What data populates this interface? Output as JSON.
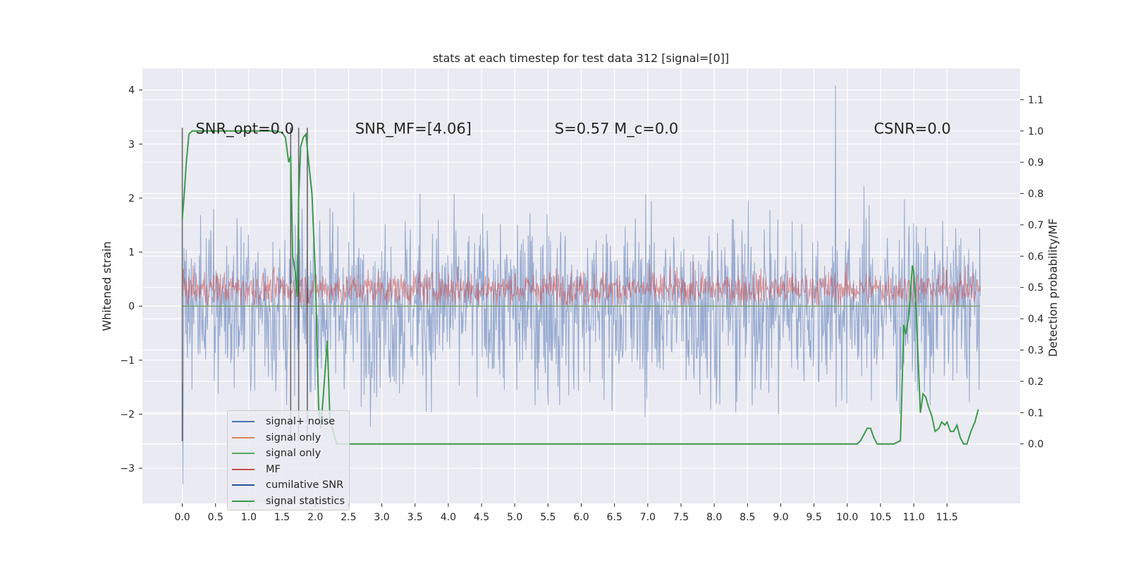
{
  "chart_data": {
    "type": "line",
    "title": "stats at each timestep for test data 312 [signal=[0]]",
    "ylabel": "Whitened strain",
    "y2label": "Detection probability/MF",
    "xlim": [
      -0.6,
      12.6
    ],
    "ylim": [
      -3.65,
      4.4
    ],
    "y2lim": [
      -0.19,
      1.2
    ],
    "x_ticks": [
      "0.0",
      "0.5",
      "1.0",
      "1.5",
      "2.0",
      "2.5",
      "3.0",
      "3.5",
      "4.0",
      "4.5",
      "5.0",
      "5.5",
      "6.0",
      "6.5",
      "7.0",
      "7.5",
      "8.0",
      "8.5",
      "9.0",
      "9.5",
      "10.0",
      "10.5",
      "11.0",
      "11.5"
    ],
    "y_ticks": [
      "−3",
      "−2",
      "−1",
      "0",
      "1",
      "2",
      "3",
      "4"
    ],
    "y2_ticks": [
      "0.0",
      "0.1",
      "0.2",
      "0.3",
      "0.4",
      "0.5",
      "0.6",
      "0.7",
      "0.8",
      "0.9",
      "1.0",
      "1.1"
    ],
    "grid": true,
    "legend_position": "lower-left",
    "annotations": [
      {
        "text": "SNR_opt=0.0",
        "x": 0.2,
        "y": 3.3
      },
      {
        "text": "SNR_MF=[4.06]",
        "x": 2.6,
        "y": 3.3
      },
      {
        "text": "S=0.57   M_c=0.0",
        "x": 5.6,
        "y": 3.3
      },
      {
        "text": "CSNR=0.0",
        "x": 10.4,
        "y": 3.3
      }
    ],
    "vlines": [
      0.0,
      1.63,
      1.75,
      1.88
    ],
    "vline_range": [
      -2.5,
      3.3
    ],
    "series": [
      {
        "name": "signal+ noise",
        "color": "#4c72b0",
        "axis": "left",
        "style": "noise",
        "x_range": [
          0,
          12
        ],
        "approx_envelope": [
          -2.6,
          2.5
        ],
        "peak": {
          "x": 9.82,
          "y": 4.08
        },
        "trough": {
          "x": 0.02,
          "y": -3.3
        }
      },
      {
        "name": "signal only",
        "color": "#dd8452",
        "axis": "left",
        "x": [
          0,
          12
        ],
        "values": [
          0,
          0
        ]
      },
      {
        "name": "signal only",
        "color": "#55a868",
        "axis": "left",
        "x": [
          0,
          12
        ],
        "values": [
          0,
          0
        ]
      },
      {
        "name": "MF",
        "color": "#c44e52",
        "axis": "left",
        "style": "noise",
        "x_range": [
          0,
          12
        ],
        "approx_envelope": [
          0.0,
          0.7
        ]
      },
      {
        "name": "cumilative SNR",
        "color": "#2a4f99",
        "axis": "left",
        "x": [],
        "values": []
      },
      {
        "name": "signal statistics",
        "color": "#3a9a4a",
        "axis": "right",
        "x": [
          0.0,
          0.03,
          0.06,
          0.1,
          0.15,
          0.25,
          0.4,
          0.6,
          0.8,
          1.0,
          1.2,
          1.4,
          1.5,
          1.55,
          1.6,
          1.63,
          1.66,
          1.7,
          1.73,
          1.75,
          1.78,
          1.82,
          1.86,
          1.9,
          1.95,
          2.0,
          2.05,
          2.08,
          2.12,
          2.18,
          2.22,
          2.27,
          2.32,
          2.4,
          2.5,
          2.7,
          3.0,
          4.0,
          5.0,
          6.0,
          7.0,
          8.0,
          9.0,
          9.5,
          10.0,
          10.15,
          10.2,
          10.25,
          10.3,
          10.35,
          10.4,
          10.45,
          10.5,
          10.6,
          10.7,
          10.8,
          10.82,
          10.85,
          10.88,
          10.92,
          10.95,
          10.98,
          11.0,
          11.03,
          11.06,
          11.1,
          11.14,
          11.18,
          11.22,
          11.27,
          11.32,
          11.38,
          11.42,
          11.47,
          11.5,
          11.55,
          11.6,
          11.65,
          11.7,
          11.75,
          11.8,
          11.86,
          11.92,
          11.97
        ],
        "values": [
          0.72,
          0.8,
          0.9,
          0.99,
          1.0,
          1.0,
          1.0,
          1.0,
          1.0,
          1.0,
          1.0,
          1.0,
          0.995,
          0.98,
          0.9,
          0.92,
          0.6,
          0.55,
          0.47,
          0.78,
          0.95,
          0.98,
          0.99,
          0.9,
          0.8,
          0.55,
          0.12,
          0.05,
          0.15,
          0.33,
          0.08,
          0.04,
          0.0,
          0.0,
          0.0,
          0.0,
          0.0,
          0.0,
          0.0,
          0.0,
          0.0,
          0.0,
          0.0,
          0.0,
          0.0,
          0.0,
          0.01,
          0.03,
          0.05,
          0.05,
          0.02,
          0.0,
          0.0,
          0.0,
          0.0,
          0.01,
          0.15,
          0.38,
          0.35,
          0.4,
          0.48,
          0.57,
          0.55,
          0.45,
          0.3,
          0.1,
          0.16,
          0.15,
          0.12,
          0.09,
          0.04,
          0.05,
          0.07,
          0.06,
          0.07,
          0.04,
          0.04,
          0.06,
          0.02,
          0.0,
          0.0,
          0.04,
          0.07,
          0.11
        ]
      }
    ]
  },
  "colors": {
    "axes_bg": "#eaeaf2",
    "grid": "#ffffff",
    "vline": "#3a3a3a"
  }
}
